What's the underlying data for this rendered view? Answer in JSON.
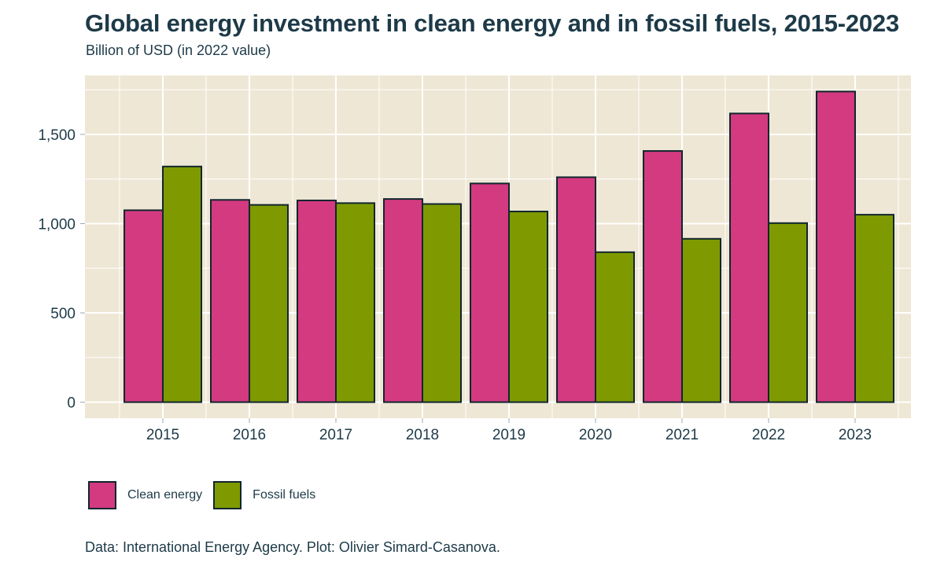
{
  "title": "Global energy investment in clean energy and in fossil fuels, 2015-2023",
  "subtitle": "Billion of USD (in 2022 value)",
  "caption": "Data: International Energy Agency. Plot: Olivier Simard-Casanova.",
  "colors": {
    "panel_background": "#efe7d5",
    "gridline": "#ffffff",
    "bar_outline": "#10262e",
    "clean_energy": "#d43a80",
    "fossil_fuels": "#7f9a00"
  },
  "legend": {
    "position": "bottom-left",
    "items": [
      {
        "label": "Clean energy",
        "color": "#d43a80"
      },
      {
        "label": "Fossil fuels",
        "color": "#7f9a00"
      }
    ]
  },
  "chart_data": {
    "type": "bar",
    "categories": [
      "2015",
      "2016",
      "2017",
      "2018",
      "2019",
      "2020",
      "2021",
      "2022",
      "2023"
    ],
    "series": [
      {
        "name": "Clean energy",
        "color": "#d43a80",
        "values": [
          1075,
          1133,
          1130,
          1138,
          1225,
          1260,
          1407,
          1617,
          1740
        ]
      },
      {
        "name": "Fossil fuels",
        "color": "#7f9a00",
        "values": [
          1320,
          1105,
          1115,
          1110,
          1068,
          840,
          915,
          1003,
          1050
        ]
      }
    ],
    "ylim": [
      -90,
      1830
    ],
    "yticks": [
      0,
      500,
      1000,
      1500
    ],
    "ytick_labels": [
      "0",
      "500",
      "1,000",
      "1,500"
    ],
    "xlabel": "",
    "ylabel": "",
    "grid": true
  }
}
